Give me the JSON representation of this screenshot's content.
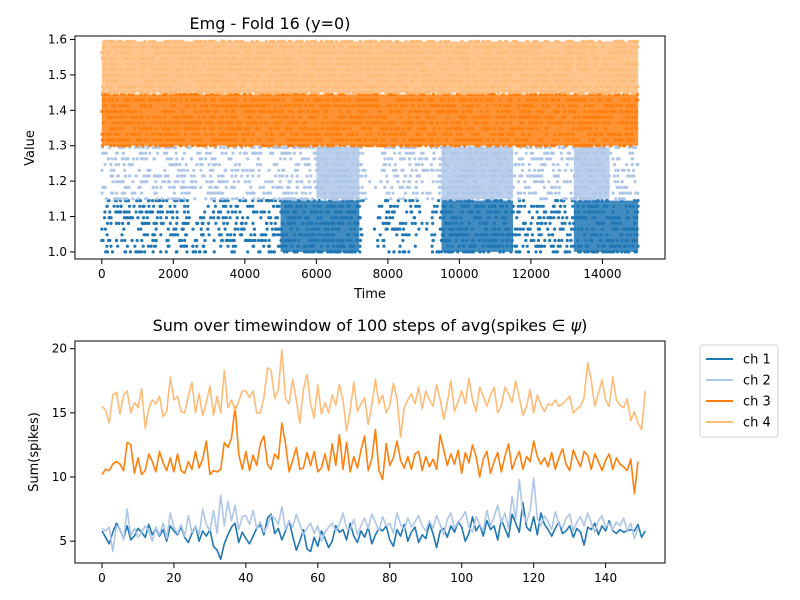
{
  "chart_data": [
    {
      "type": "scatter",
      "title": "Emg - Fold 16 (y=0)",
      "xlabel": "Time",
      "ylabel": "Value",
      "xlim": [
        -750,
        15750
      ],
      "ylim": [
        0.98,
        1.61
      ],
      "xticks": [
        0,
        2000,
        4000,
        6000,
        8000,
        10000,
        12000,
        14000
      ],
      "yticks": [
        1.0,
        1.1,
        1.2,
        1.3,
        1.4,
        1.5,
        1.6
      ],
      "x_range": [
        0,
        14999
      ],
      "series": [
        {
          "color": "#1f77b4",
          "band": [
            1.0,
            1.145
          ],
          "dense_spans": [
            [
              5000,
              7200
            ],
            [
              9500,
              11500
            ],
            [
              13200,
              15000
            ]
          ],
          "gaps": [
            [
              7300,
              7700
            ],
            [
              8900,
              9200
            ]
          ]
        },
        {
          "color": "#aec7e8",
          "band": [
            1.15,
            1.295
          ],
          "dense_spans": [
            [
              6000,
              7200
            ],
            [
              9500,
              11500
            ],
            [
              13200,
              14200
            ]
          ],
          "gaps": [
            [
              7400,
              7800
            ]
          ]
        },
        {
          "color": "#ff7f0e",
          "band": [
            1.3,
            1.445
          ],
          "dense_spans": [
            [
              0,
              15000
            ]
          ],
          "gaps": []
        },
        {
          "color": "#ffbb78",
          "band": [
            1.45,
            1.595
          ],
          "dense_spans": [
            [
              0,
              15000
            ]
          ],
          "gaps": []
        }
      ]
    },
    {
      "type": "line",
      "title": "Sum over timewindow of 100 steps of avg(spikes $\\in\\psi$)",
      "title_text": "Sum over timewindow of 100 steps of avg(spikes ",
      "title_math": "∈ ψ",
      "title_close": ")",
      "xlabel": "",
      "ylabel": "Sum(spikes)",
      "xlim": [
        -7.5,
        156.5
      ],
      "ylim": [
        3.3,
        20.6
      ],
      "xticks": [
        0,
        20,
        40,
        60,
        80,
        100,
        120,
        140
      ],
      "yticks": [
        5,
        10,
        15,
        20
      ],
      "x_start": 0,
      "x_step": 1,
      "legend_placement": "outside-right-top",
      "series": [
        {
          "name": "ch 1",
          "color": "#1f77b4",
          "values": [
            5.8,
            5.3,
            4.8,
            5.7,
            6.4,
            5.9,
            5.2,
            6.2,
            5.1,
            5.4,
            6.0,
            5.7,
            5.3,
            6.3,
            5.5,
            6.0,
            5.4,
            5.9,
            5.0,
            6.2,
            5.8,
            5.5,
            6.1,
            5.3,
            4.9,
            5.6,
            6.2,
            5.0,
            5.8,
            5.4,
            5.9,
            4.6,
            4.3,
            3.6,
            4.8,
            5.5,
            6.1,
            6.4,
            4.9,
            5.7,
            5.2,
            4.8,
            5.4,
            6.0,
            6.3,
            5.5,
            6.8,
            7.1,
            5.6,
            6.0,
            5.1,
            5.8,
            6.6,
            5.4,
            4.3,
            5.0,
            5.9,
            4.4,
            4.2,
            5.3,
            4.6,
            5.8,
            5.2,
            4.5,
            5.0,
            6.2,
            5.7,
            5.9,
            5.1,
            6.4,
            5.4,
            4.9,
            5.8,
            5.3,
            6.1,
            4.8,
            5.5,
            6.0,
            5.8,
            6.2,
            5.1,
            4.6,
            5.9,
            5.4,
            6.3,
            5.0,
            5.7,
            6.1,
            4.9,
            5.5,
            5.2,
            6.4,
            5.6,
            4.5,
            5.8,
            6.0,
            5.3,
            6.2,
            5.7,
            6.5,
            6.1,
            5.0,
            5.6,
            6.9,
            5.8,
            6.3,
            5.4,
            6.6,
            5.9,
            6.2,
            5.1,
            6.7,
            6.0,
            5.3,
            7.1,
            6.4,
            5.7,
            8.0,
            6.1,
            5.8,
            6.9,
            5.5,
            7.2,
            6.3,
            5.9,
            5.4,
            6.0,
            6.5,
            5.6,
            5.8,
            6.2,
            5.3,
            6.0,
            5.7,
            4.7,
            6.1,
            5.9,
            6.4,
            5.5,
            6.2,
            5.8,
            6.6,
            5.8,
            5.6,
            5.9,
            5.7,
            5.8,
            5.9,
            5.8,
            6.3,
            5.3,
            5.8
          ]
        },
        {
          "name": "ch 2",
          "color": "#aec7e8",
          "values": [
            6.0,
            5.8,
            6.1,
            4.2,
            6.2,
            6.0,
            5.1,
            7.5,
            5.4,
            6.0,
            5.3,
            5.7,
            6.2,
            5.8,
            5.0,
            6.1,
            5.5,
            6.4,
            5.2,
            7.2,
            6.1,
            5.6,
            6.3,
            5.4,
            7.0,
            5.7,
            6.2,
            5.5,
            7.5,
            6.3,
            5.8,
            7.4,
            5.6,
            8.6,
            6.2,
            8.1,
            6.6,
            7.8,
            5.9,
            6.9,
            7.0,
            6.3,
            7.4,
            6.0,
            6.5,
            5.7,
            6.2,
            7.0,
            6.8,
            6.3,
            7.7,
            5.9,
            6.6,
            6.1,
            7.1,
            6.3,
            5.5,
            6.0,
            6.4,
            5.6,
            6.2,
            5.0,
            5.7,
            6.1,
            6.4,
            5.8,
            6.3,
            7.2,
            6.0,
            5.9,
            6.7,
            5.5,
            6.2,
            6.8,
            6.0,
            7.1,
            6.5,
            5.8,
            6.9,
            6.2,
            6.4,
            5.6,
            7.2,
            6.3,
            5.9,
            6.8,
            6.1,
            6.5,
            7.0,
            6.2,
            5.8,
            6.6,
            6.0,
            7.0,
            6.3,
            5.5,
            6.7,
            7.2,
            6.0,
            6.5,
            6.8,
            7.3,
            6.1,
            5.7,
            6.9,
            6.3,
            5.8,
            7.4,
            6.2,
            6.9,
            7.8,
            6.4,
            7.2,
            6.0,
            8.5,
            6.7,
            9.8,
            7.1,
            6.5,
            7.4,
            9.9,
            6.8,
            6.2,
            7.0,
            6.5,
            5.9,
            7.3,
            6.4,
            6.0,
            6.8,
            7.1,
            5.8,
            6.5,
            6.9,
            6.2,
            7.2,
            6.4,
            5.7,
            6.6,
            7.0,
            6.1,
            6.4,
            5.9,
            6.5,
            6.2,
            6.8,
            5.8,
            6.4,
            5.2,
            6.0
          ]
        },
        {
          "name": "ch 3",
          "color": "#ff7f0e",
          "values": [
            10.2,
            10.6,
            10.5,
            11.0,
            11.2,
            11.0,
            10.5,
            12.7,
            12.5,
            10.3,
            11.5,
            10.2,
            10.5,
            11.8,
            11.2,
            10.4,
            12.0,
            11.1,
            10.5,
            11.5,
            10.4,
            11.8,
            10.5,
            10.3,
            11.2,
            10.6,
            12.0,
            10.7,
            11.4,
            12.8,
            10.2,
            10.5,
            10.4,
            10.6,
            12.7,
            12.3,
            13.0,
            15.5,
            11.8,
            10.6,
            12.0,
            10.5,
            11.7,
            10.9,
            12.6,
            13.2,
            11.0,
            10.6,
            11.8,
            11.4,
            14.2,
            12.6,
            10.4,
            11.3,
            12.3,
            10.6,
            10.7,
            11.9,
            10.9,
            12.0,
            10.4,
            10.7,
            11.8,
            10.5,
            12.6,
            10.9,
            13.3,
            10.6,
            12.7,
            10.4,
            11.6,
            10.7,
            12.1,
            13.2,
            10.5,
            11.4,
            13.7,
            10.5,
            9.8,
            12.6,
            10.9,
            11.5,
            12.8,
            11.3,
            10.7,
            11.6,
            10.6,
            11.8,
            12.0,
            10.5,
            11.6,
            10.8,
            11.4,
            10.6,
            13.3,
            12.1,
            10.9,
            11.8,
            11.0,
            12.1,
            10.3,
            11.9,
            11.1,
            12.5,
            11.6,
            10.0,
            11.4,
            12.0,
            10.3,
            11.2,
            11.9,
            10.4,
            11.6,
            12.6,
            10.6,
            11.4,
            12.0,
            10.6,
            11.6,
            11.2,
            12.8,
            11.6,
            11.0,
            11.5,
            10.8,
            11.9,
            10.6,
            11.5,
            12.2,
            11.0,
            10.5,
            12.1,
            11.4,
            10.8,
            12.0,
            11.7,
            10.6,
            11.8,
            11.2,
            10.5,
            11.3,
            11.8,
            10.6,
            11.5,
            11.0,
            10.8,
            10.5,
            11.4,
            8.7,
            11.2
          ]
        },
        {
          "name": "ch 4",
          "color": "#ffbb78",
          "values": [
            15.5,
            15.2,
            14.2,
            16.4,
            16.6,
            14.9,
            16.4,
            16.7,
            15.0,
            15.8,
            15.4,
            16.9,
            13.8,
            15.3,
            16.0,
            15.7,
            16.3,
            14.7,
            15.1,
            17.8,
            16.0,
            16.3,
            15.1,
            15.0,
            16.3,
            17.4,
            15.0,
            16.5,
            14.8,
            15.8,
            17.1,
            14.8,
            16.3,
            15.0,
            18.3,
            15.4,
            16.0,
            15.2,
            15.9,
            16.7,
            16.7,
            16.2,
            16.7,
            15.0,
            15.0,
            16.2,
            18.5,
            18.3,
            16.1,
            16.8,
            19.9,
            16.1,
            15.7,
            17.6,
            16.0,
            14.2,
            16.8,
            18.0,
            15.7,
            14.6,
            17.2,
            14.9,
            15.8,
            15.0,
            16.4,
            15.6,
            17.2,
            16.0,
            13.6,
            15.2,
            17.4,
            15.1,
            15.7,
            16.2,
            14.1,
            15.6,
            17.6,
            15.7,
            16.4,
            15.0,
            15.6,
            17.3,
            16.1,
            13.1,
            15.4,
            16.0,
            16.5,
            15.7,
            17.0,
            15.3,
            16.7,
            16.0,
            15.5,
            17.2,
            16.0,
            14.5,
            15.8,
            17.5,
            15.1,
            15.9,
            16.7,
            15.7,
            17.7,
            16.0,
            15.1,
            17.0,
            16.3,
            15.5,
            16.4,
            17.0,
            15.0,
            15.5,
            17.0,
            16.5,
            15.8,
            17.5,
            16.2,
            14.8,
            15.5,
            16.8,
            15.0,
            16.4,
            15.6,
            15.1,
            15.7,
            15.6,
            16.0,
            15.5,
            15.7,
            16.0,
            16.3,
            15.0,
            15.3,
            15.5,
            16.2,
            18.9,
            17.5,
            15.5,
            16.5,
            17.6,
            16.0,
            15.5,
            17.8,
            16.0,
            15.6,
            15.4,
            16.1,
            14.4,
            15.1,
            14.2,
            13.7,
            16.7
          ]
        }
      ]
    }
  ]
}
